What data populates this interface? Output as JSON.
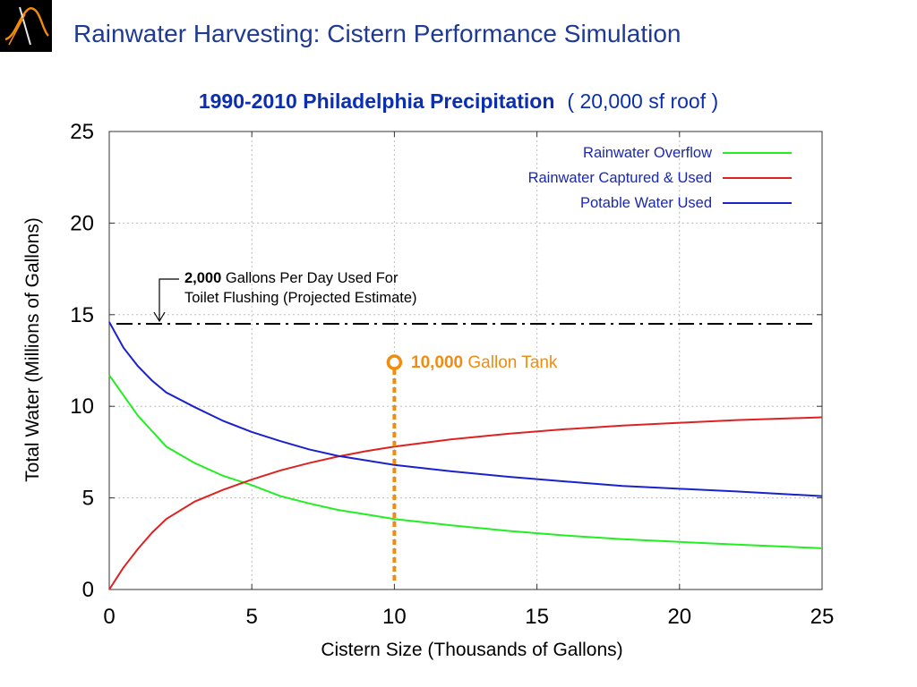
{
  "slide": {
    "title": "Rainwater Harvesting: Cistern Performance Simulation",
    "logo_icon": "sine-wave-logo-icon"
  },
  "chart_data": {
    "type": "line",
    "title": "1990-2010  Philadelphia Precipitation",
    "subtitle": "( 20,000 sf roof )",
    "xlabel": "Cistern Size (Thousands of Gallons)",
    "ylabel": "Total Water (Millions of Gallons)",
    "xlim": [
      0,
      25
    ],
    "ylim": [
      0,
      25
    ],
    "xticks": [
      "0",
      "5",
      "10",
      "15",
      "20",
      "25"
    ],
    "yticks": [
      "0",
      "5",
      "10",
      "15",
      "20",
      "25"
    ],
    "grid": true,
    "legend_position": "top-right",
    "series": [
      {
        "name": "Rainwater Overflow",
        "color": "#22ee22",
        "points": [
          [
            0,
            11.7
          ],
          [
            1,
            9.5
          ],
          [
            2,
            7.8
          ],
          [
            3,
            6.9
          ],
          [
            4,
            6.2
          ],
          [
            5,
            5.7
          ],
          [
            6,
            5.1
          ],
          [
            7,
            4.7
          ],
          [
            8,
            4.35
          ],
          [
            9,
            4.1
          ],
          [
            10,
            3.85
          ],
          [
            12,
            3.5
          ],
          [
            14,
            3.2
          ],
          [
            16,
            2.95
          ],
          [
            18,
            2.75
          ],
          [
            20,
            2.6
          ],
          [
            22,
            2.45
          ],
          [
            24,
            2.32
          ],
          [
            25,
            2.25
          ]
        ]
      },
      {
        "name": "Rainwater Captured & Used",
        "color": "#dd2222",
        "points": [
          [
            0,
            0.0
          ],
          [
            0.5,
            1.2
          ],
          [
            1,
            2.2
          ],
          [
            1.5,
            3.1
          ],
          [
            2,
            3.85
          ],
          [
            3,
            4.8
          ],
          [
            4,
            5.45
          ],
          [
            5,
            6.0
          ],
          [
            6,
            6.5
          ],
          [
            7,
            6.9
          ],
          [
            8,
            7.25
          ],
          [
            9,
            7.55
          ],
          [
            10,
            7.8
          ],
          [
            12,
            8.2
          ],
          [
            14,
            8.5
          ],
          [
            16,
            8.75
          ],
          [
            18,
            8.95
          ],
          [
            20,
            9.1
          ],
          [
            22,
            9.25
          ],
          [
            25,
            9.4
          ]
        ]
      },
      {
        "name": "Potable Water Used",
        "color": "#1a22cc",
        "points": [
          [
            0,
            14.6
          ],
          [
            0.5,
            13.2
          ],
          [
            1,
            12.2
          ],
          [
            1.5,
            11.4
          ],
          [
            2,
            10.75
          ],
          [
            3,
            9.95
          ],
          [
            4,
            9.2
          ],
          [
            5,
            8.6
          ],
          [
            6,
            8.1
          ],
          [
            7,
            7.65
          ],
          [
            8,
            7.3
          ],
          [
            9,
            7.05
          ],
          [
            10,
            6.8
          ],
          [
            12,
            6.45
          ],
          [
            14,
            6.15
          ],
          [
            16,
            5.9
          ],
          [
            18,
            5.65
          ],
          [
            20,
            5.5
          ],
          [
            22,
            5.35
          ],
          [
            25,
            5.1
          ]
        ]
      }
    ],
    "reference_line": {
      "y": 14.5,
      "style": "dash-dot",
      "color": "#000000",
      "annotation_bold": "2,000",
      "annotation_line1": " Gallons Per Day Used For",
      "annotation_line2": "Toilet Flushing (Projected Estimate)"
    },
    "marker": {
      "x": 10,
      "y": 12.4,
      "color": "#f28c0f",
      "label_bold": "10,000",
      "label_rest": " Gallon Tank"
    }
  }
}
